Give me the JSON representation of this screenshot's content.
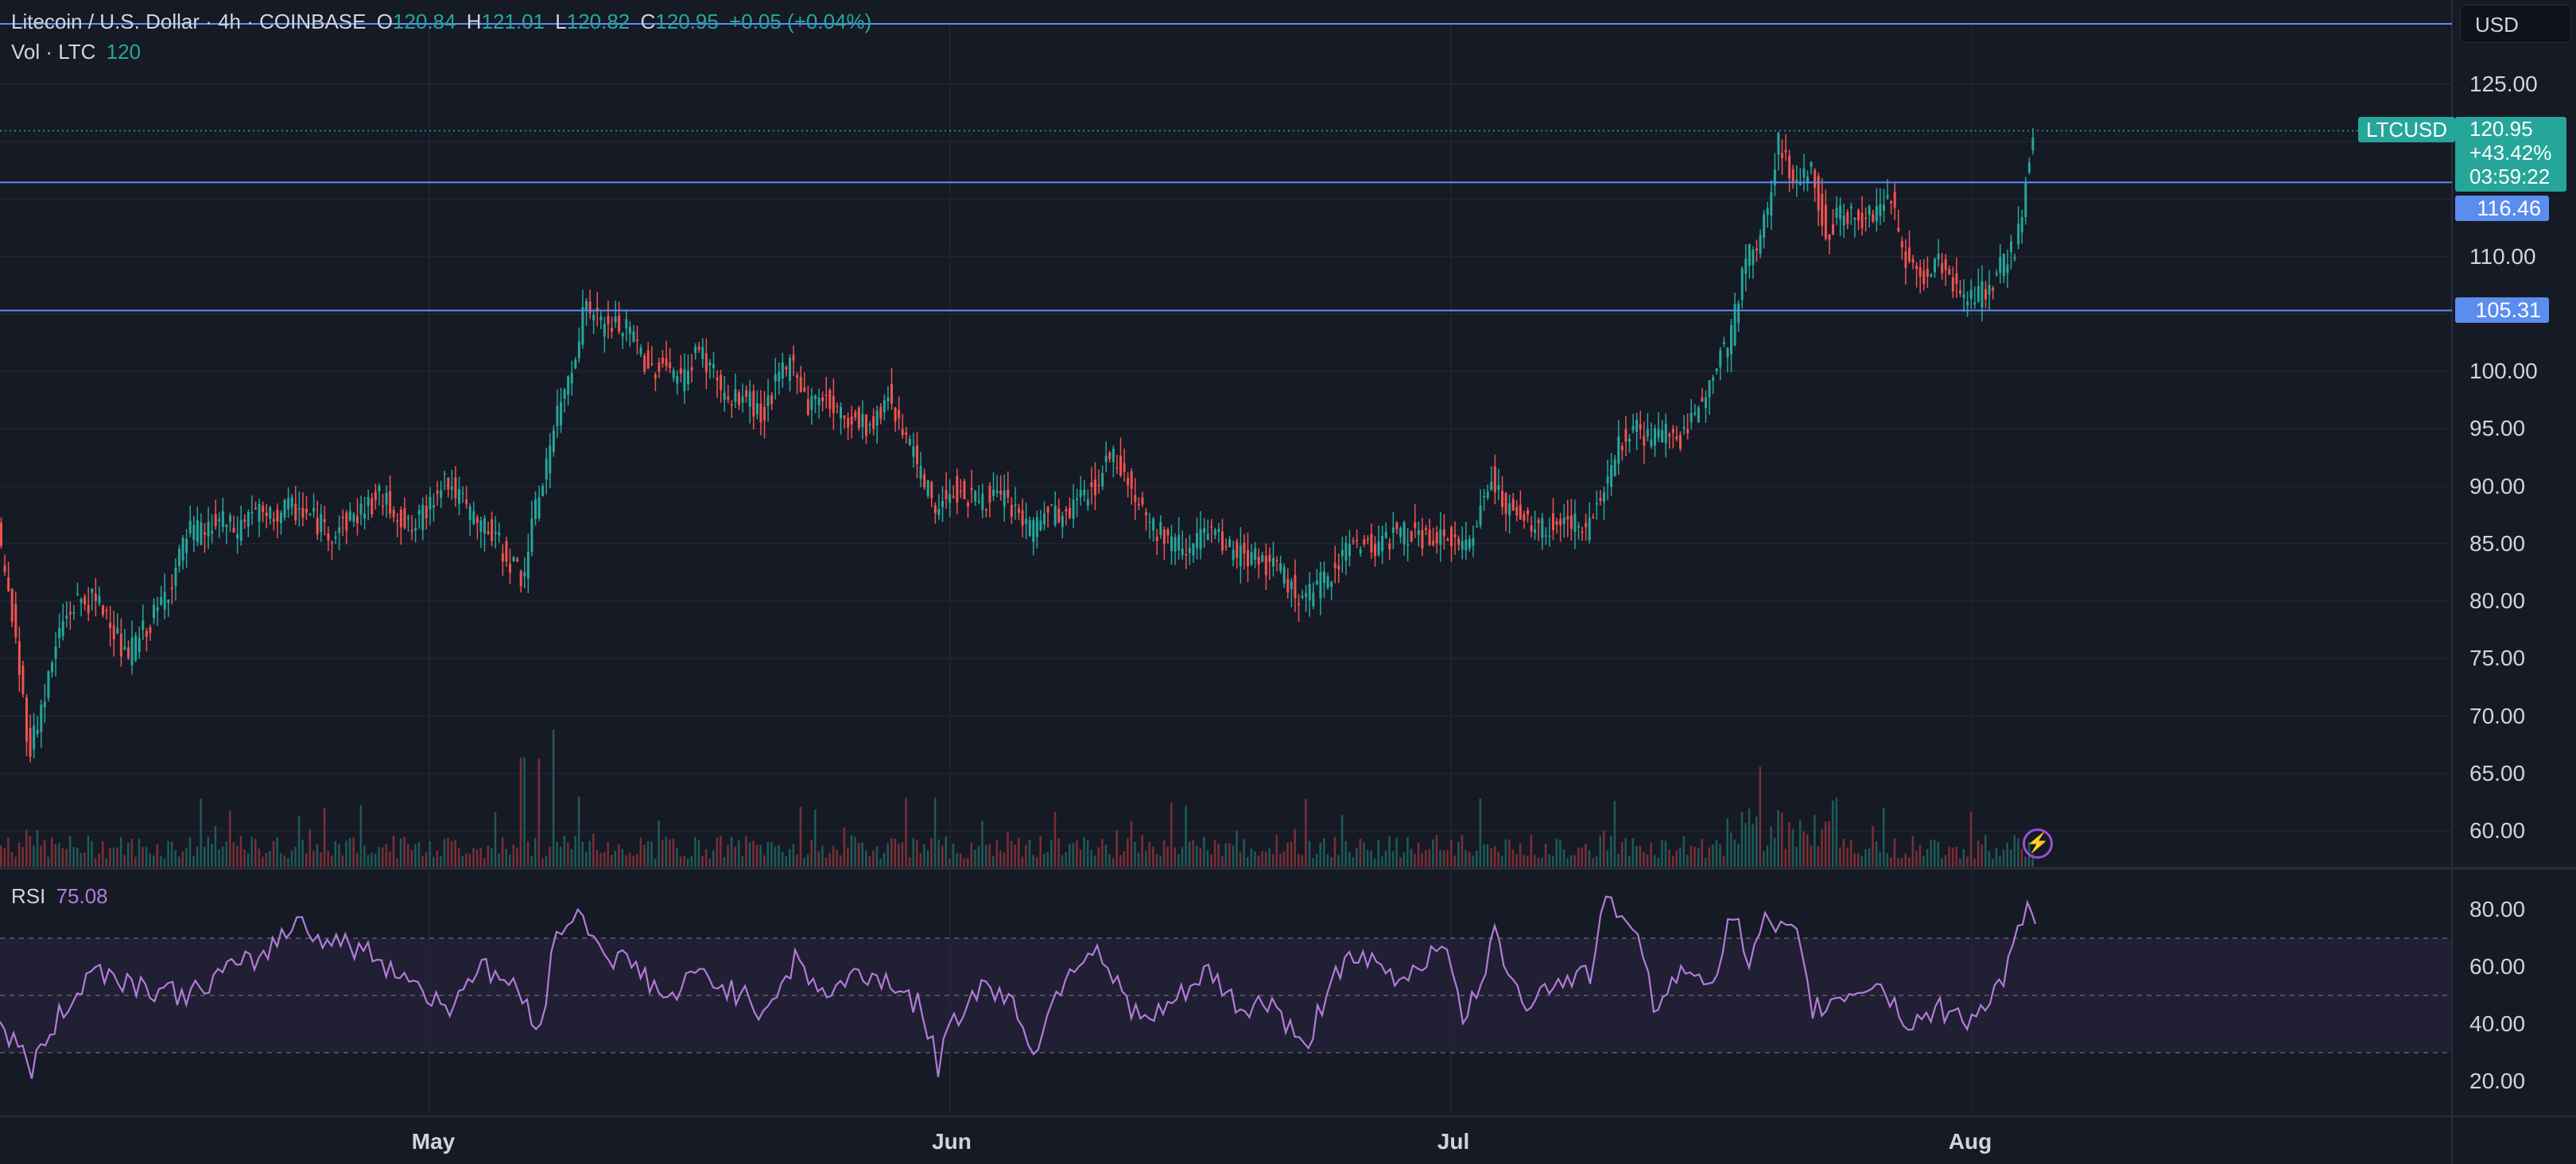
{
  "header": {
    "symbol_title": "Litecoin / U.S. Dollar · 4h · COINBASE",
    "o_label": "O",
    "o_value": "120.84",
    "h_label": "H",
    "h_value": "121.01",
    "l_label": "L",
    "l_value": "120.82",
    "c_label": "C",
    "c_value": "120.95",
    "change": "+0.05 (+0.04%)",
    "vol_label": "Vol · LTC",
    "vol_value": "120",
    "rsi_label": "RSI",
    "rsi_value": "75.08"
  },
  "currency_button": "USD",
  "price_tags": {
    "ticker": "LTCUSD",
    "last_price": "120.95",
    "change_pct": "+43.42%",
    "countdown": "03:59:22",
    "line_1": "116.46",
    "line_2": "105.31"
  },
  "colors": {
    "background": "#161a25",
    "up": "#26a69a",
    "down": "#ef5350",
    "horizontal_line": "#5b8def",
    "rsi_line": "#b27bd9",
    "rsi_band": "#2a2440"
  },
  "chart_data": [
    {
      "type": "candlestick",
      "title": "Litecoin / U.S. Dollar · 4h · COINBASE",
      "ylim": [
        57,
        128
      ],
      "y_ticks": [
        "125.00",
        "120.95",
        "116.46",
        "110.00",
        "105.31",
        "100.00",
        "95.00",
        "90.00",
        "85.00",
        "80.00",
        "75.00",
        "70.00",
        "65.00",
        "60.00"
      ],
      "x_ticks": [
        "May",
        "Jun",
        "Jul",
        "Aug"
      ],
      "horizontal_lines": [
        116.46,
        105.31
      ],
      "last_price": 120.95,
      "price_path": [
        [
          0,
          86
        ],
        [
          20,
          78
        ],
        [
          40,
          67
        ],
        [
          60,
          72
        ],
        [
          80,
          78
        ],
        [
          100,
          80
        ],
        [
          120,
          80
        ],
        [
          140,
          79
        ],
        [
          160,
          75
        ],
        [
          180,
          77
        ],
        [
          200,
          79
        ],
        [
          220,
          82
        ],
        [
          240,
          86
        ],
        [
          260,
          86
        ],
        [
          280,
          87
        ],
        [
          300,
          86
        ],
        [
          320,
          88
        ],
        [
          340,
          87
        ],
        [
          360,
          88
        ],
        [
          380,
          88
        ],
        [
          400,
          87
        ],
        [
          420,
          86
        ],
        [
          440,
          87
        ],
        [
          460,
          88
        ],
        [
          480,
          89
        ],
        [
          500,
          88
        ],
        [
          520,
          86
        ],
        [
          540,
          88
        ],
        [
          560,
          91
        ],
        [
          580,
          89
        ],
        [
          600,
          87
        ],
        [
          620,
          86
        ],
        [
          640,
          84
        ],
        [
          660,
          82
        ],
        [
          680,
          89
        ],
        [
          700,
          95
        ],
        [
          720,
          100
        ],
        [
          740,
          106
        ],
        [
          760,
          104
        ],
        [
          780,
          104
        ],
        [
          800,
          103
        ],
        [
          820,
          100
        ],
        [
          840,
          101
        ],
        [
          860,
          99
        ],
        [
          880,
          102
        ],
        [
          900,
          100
        ],
        [
          920,
          97
        ],
        [
          940,
          98
        ],
        [
          960,
          96
        ],
        [
          980,
          99
        ],
        [
          1000,
          101
        ],
        [
          1020,
          97
        ],
        [
          1040,
          98
        ],
        [
          1060,
          96
        ],
        [
          1080,
          96
        ],
        [
          1100,
          95
        ],
        [
          1120,
          98
        ],
        [
          1140,
          95
        ],
        [
          1160,
          91
        ],
        [
          1180,
          88
        ],
        [
          1200,
          90
        ],
        [
          1220,
          89
        ],
        [
          1240,
          89
        ],
        [
          1260,
          89
        ],
        [
          1280,
          88
        ],
        [
          1300,
          86
        ],
        [
          1320,
          88
        ],
        [
          1340,
          87
        ],
        [
          1360,
          89
        ],
        [
          1380,
          90
        ],
        [
          1400,
          93
        ],
        [
          1420,
          91
        ],
        [
          1440,
          88
        ],
        [
          1460,
          86
        ],
        [
          1480,
          85
        ],
        [
          1500,
          85
        ],
        [
          1520,
          86
        ],
        [
          1540,
          85
        ],
        [
          1560,
          84
        ],
        [
          1580,
          84
        ],
        [
          1600,
          83
        ],
        [
          1620,
          82
        ],
        [
          1640,
          80
        ],
        [
          1660,
          81
        ],
        [
          1680,
          83
        ],
        [
          1700,
          85
        ],
        [
          1720,
          85
        ],
        [
          1740,
          85
        ],
        [
          1760,
          86
        ],
        [
          1780,
          86
        ],
        [
          1800,
          85
        ],
        [
          1820,
          86
        ],
        [
          1840,
          84
        ],
        [
          1860,
          87
        ],
        [
          1880,
          91
        ],
        [
          1900,
          88
        ],
        [
          1920,
          87
        ],
        [
          1940,
          86
        ],
        [
          1960,
          87
        ],
        [
          1980,
          87
        ],
        [
          2000,
          86
        ],
        [
          2020,
          90
        ],
        [
          2040,
          94
        ],
        [
          2060,
          95
        ],
        [
          2080,
          94
        ],
        [
          2100,
          95
        ],
        [
          2120,
          94
        ],
        [
          2140,
          97
        ],
        [
          2160,
          101
        ],
        [
          2180,
          103
        ],
        [
          2200,
          110
        ],
        [
          2220,
          112
        ],
        [
          2240,
          120
        ],
        [
          2260,
          116
        ],
        [
          2280,
          118
        ],
        [
          2300,
          112
        ],
        [
          2320,
          114
        ],
        [
          2340,
          113
        ],
        [
          2360,
          114
        ],
        [
          2380,
          115
        ],
        [
          2400,
          110
        ],
        [
          2420,
          108
        ],
        [
          2440,
          110
        ],
        [
          2460,
          108
        ],
        [
          2480,
          106
        ],
        [
          2500,
          107
        ],
        [
          2520,
          109
        ],
        [
          2540,
          111
        ],
        [
          2560,
          121
        ]
      ],
      "volume_bars": 225
    },
    {
      "type": "line",
      "title": "RSI",
      "ylim": [
        10,
        90
      ],
      "y_ticks": [
        "80.00",
        "60.00",
        "40.00",
        "20.00"
      ],
      "band": [
        30,
        70
      ],
      "mid": 50,
      "last_value": 75.08,
      "series": [
        [
          0,
          40
        ],
        [
          40,
          25
        ],
        [
          80,
          45
        ],
        [
          120,
          60
        ],
        [
          160,
          55
        ],
        [
          200,
          52
        ],
        [
          240,
          50
        ],
        [
          280,
          58
        ],
        [
          320,
          62
        ],
        [
          360,
          72
        ],
        [
          380,
          78
        ],
        [
          400,
          70
        ],
        [
          440,
          68
        ],
        [
          480,
          62
        ],
        [
          520,
          55
        ],
        [
          560,
          45
        ],
        [
          600,
          60
        ],
        [
          640,
          55
        ],
        [
          680,
          40
        ],
        [
          700,
          72
        ],
        [
          720,
          78
        ],
        [
          740,
          75
        ],
        [
          760,
          65
        ],
        [
          800,
          60
        ],
        [
          840,
          48
        ],
        [
          880,
          58
        ],
        [
          920,
          52
        ],
        [
          960,
          45
        ],
        [
          1000,
          62
        ],
        [
          1040,
          50
        ],
        [
          1080,
          58
        ],
        [
          1120,
          55
        ],
        [
          1160,
          45
        ],
        [
          1180,
          25
        ],
        [
          1200,
          42
        ],
        [
          1240,
          55
        ],
        [
          1280,
          45
        ],
        [
          1300,
          30
        ],
        [
          1340,
          58
        ],
        [
          1380,
          68
        ],
        [
          1400,
          55
        ],
        [
          1440,
          40
        ],
        [
          1480,
          48
        ],
        [
          1520,
          58
        ],
        [
          1560,
          45
        ],
        [
          1600,
          48
        ],
        [
          1640,
          30
        ],
        [
          1680,
          60
        ],
        [
          1720,
          62
        ],
        [
          1760,
          55
        ],
        [
          1800,
          65
        ],
        [
          1820,
          70
        ],
        [
          1840,
          38
        ],
        [
          1880,
          70
        ],
        [
          1920,
          48
        ],
        [
          1960,
          55
        ],
        [
          2000,
          58
        ],
        [
          2020,
          82
        ],
        [
          2040,
          80
        ],
        [
          2060,
          68
        ],
        [
          2080,
          48
        ],
        [
          2120,
          58
        ],
        [
          2160,
          58
        ],
        [
          2180,
          80
        ],
        [
          2200,
          60
        ],
        [
          2220,
          75
        ],
        [
          2240,
          72
        ],
        [
          2260,
          70
        ],
        [
          2280,
          45
        ],
        [
          2320,
          50
        ],
        [
          2360,
          55
        ],
        [
          2400,
          40
        ],
        [
          2440,
          45
        ],
        [
          2480,
          42
        ],
        [
          2520,
          55
        ],
        [
          2550,
          80
        ],
        [
          2560,
          75
        ]
      ]
    }
  ]
}
